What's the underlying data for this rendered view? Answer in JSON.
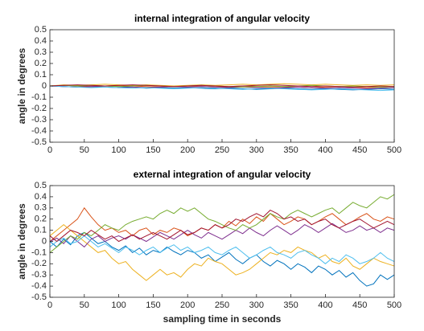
{
  "chart_data": [
    {
      "type": "line",
      "title": "internal integration of angular velocity",
      "ylabel": "angle in degrees",
      "x": [
        0,
        20,
        40,
        60,
        80,
        100,
        120,
        140,
        160,
        180,
        200,
        220,
        240,
        260,
        280,
        300,
        320,
        340,
        360,
        380,
        400,
        420,
        440,
        460,
        480,
        500
      ],
      "xlim": [
        0,
        500
      ],
      "xticks": [
        0,
        50,
        100,
        150,
        200,
        250,
        300,
        350,
        400,
        450,
        500
      ],
      "ylim": [
        -0.5,
        0.5
      ],
      "yticks": [
        -0.5,
        -0.4,
        -0.3,
        -0.2,
        -0.1,
        0,
        0.1,
        0.2,
        0.3,
        0.4,
        0.5
      ],
      "grid": false,
      "series": [
        {
          "color": "#0072BD",
          "values": [
            0,
            -0.005,
            -0.01,
            -0.005,
            -0.01,
            -0.015,
            -0.01,
            -0.02,
            -0.015,
            -0.02,
            -0.015,
            -0.02,
            -0.025,
            -0.02,
            -0.025,
            -0.03,
            -0.025,
            -0.02,
            -0.025,
            -0.03,
            -0.025,
            -0.03,
            -0.035,
            -0.03,
            -0.025,
            -0.03
          ]
        },
        {
          "color": "#D95319",
          "values": [
            0,
            0.005,
            0,
            -0.005,
            0,
            0.005,
            0,
            -0.005,
            -0.01,
            -0.005,
            0,
            -0.005,
            -0.01,
            -0.005,
            0,
            -0.005,
            -0.01,
            -0.005,
            -0.01,
            -0.015,
            -0.01,
            -0.005,
            -0.01,
            -0.015,
            -0.01,
            -0.005
          ]
        },
        {
          "color": "#EDB120",
          "values": [
            0,
            0.01,
            0.005,
            0.01,
            0.015,
            0.01,
            0.005,
            0.01,
            0.005,
            0,
            0.005,
            0.01,
            0.005,
            0.01,
            0.015,
            0.01,
            0.015,
            0.02,
            0.015,
            0.01,
            0.015,
            0.01,
            0.005,
            0.01,
            0.005,
            0.01
          ]
        },
        {
          "color": "#7E2F8E",
          "values": [
            0,
            -0.005,
            -0.01,
            -0.005,
            0,
            -0.005,
            -0.01,
            -0.015,
            -0.01,
            -0.005,
            -0.01,
            -0.005,
            -0.01,
            -0.015,
            -0.01,
            -0.015,
            -0.02,
            -0.015,
            -0.01,
            -0.015,
            -0.02,
            -0.015,
            -0.02,
            -0.025,
            -0.02,
            -0.015
          ]
        },
        {
          "color": "#77AC30",
          "values": [
            0,
            0.005,
            0,
            0.005,
            0,
            -0.005,
            0,
            0.005,
            0,
            -0.005,
            0,
            0.005,
            0,
            -0.005,
            -0.01,
            -0.005,
            0,
            -0.005,
            0,
            0.005,
            0,
            -0.005,
            0,
            -0.005,
            -0.01,
            -0.005
          ]
        },
        {
          "color": "#4DBEEE",
          "values": [
            0,
            -0.005,
            -0.01,
            -0.015,
            -0.01,
            -0.015,
            -0.02,
            -0.015,
            -0.02,
            -0.025,
            -0.02,
            -0.015,
            -0.02,
            -0.025,
            -0.03,
            -0.025,
            -0.02,
            -0.025,
            -0.03,
            -0.035,
            -0.03,
            -0.025,
            -0.03,
            -0.035,
            -0.04,
            -0.035
          ]
        },
        {
          "color": "#A2142F",
          "values": [
            0,
            0.005,
            0.01,
            0.005,
            0,
            0.005,
            0.01,
            0.005,
            0,
            -0.005,
            0,
            0.005,
            0,
            -0.005,
            0,
            0.005,
            0.01,
            0.005,
            0,
            -0.005,
            0,
            -0.005,
            -0.01,
            -0.005,
            0,
            -0.005
          ]
        }
      ]
    },
    {
      "type": "line",
      "title": "external integration of angular velocity",
      "ylabel": "angle in degrees",
      "xlabel": "sampling time in seconds",
      "x": [
        0,
        10,
        20,
        30,
        40,
        50,
        60,
        70,
        80,
        90,
        100,
        110,
        120,
        130,
        140,
        150,
        160,
        170,
        180,
        190,
        200,
        210,
        220,
        230,
        240,
        250,
        260,
        270,
        280,
        290,
        300,
        310,
        320,
        330,
        340,
        350,
        360,
        370,
        380,
        390,
        400,
        410,
        420,
        430,
        440,
        450,
        460,
        470,
        480,
        490,
        500
      ],
      "xlim": [
        0,
        500
      ],
      "xticks": [
        0,
        50,
        100,
        150,
        200,
        250,
        300,
        350,
        400,
        450,
        500
      ],
      "ylim": [
        -0.5,
        0.5
      ],
      "yticks": [
        -0.5,
        -0.4,
        -0.3,
        -0.2,
        -0.1,
        0,
        0.1,
        0.2,
        0.3,
        0.4,
        0.5
      ],
      "grid": false,
      "series": [
        {
          "color": "#0072BD",
          "values": [
            0,
            -0.05,
            0.02,
            -0.03,
            0.05,
            0.08,
            0.03,
            -0.02,
            0,
            -0.05,
            -0.08,
            -0.04,
            -0.1,
            -0.06,
            -0.12,
            -0.08,
            -0.1,
            -0.05,
            -0.09,
            -0.12,
            -0.08,
            -0.1,
            -0.15,
            -0.12,
            -0.18,
            -0.14,
            -0.1,
            -0.16,
            -0.2,
            -0.15,
            -0.12,
            -0.18,
            -0.22,
            -0.17,
            -0.2,
            -0.25,
            -0.2,
            -0.23,
            -0.28,
            -0.22,
            -0.25,
            -0.3,
            -0.26,
            -0.32,
            -0.28,
            -0.35,
            -0.4,
            -0.38,
            -0.3,
            -0.34,
            -0.3
          ]
        },
        {
          "color": "#D95319",
          "values": [
            0,
            0.05,
            0.1,
            0.15,
            0.2,
            0.3,
            0.22,
            0.15,
            0.1,
            0.12,
            0.08,
            0.1,
            0.05,
            0.1,
            0.12,
            0.06,
            0.1,
            0.08,
            0.12,
            0.1,
            0.05,
            0.08,
            0.12,
            0.1,
            0.15,
            0.12,
            0.18,
            0.14,
            0.2,
            0.16,
            0.22,
            0.18,
            0.25,
            0.2,
            0.15,
            0.18,
            0.22,
            0.2,
            0.15,
            0.18,
            0.22,
            0.25,
            0.2,
            0.15,
            0.18,
            0.22,
            0.25,
            0.2,
            0.18,
            0.22,
            0.2
          ]
        },
        {
          "color": "#EDB120",
          "values": [
            0.05,
            0.1,
            0.15,
            0.1,
            0.05,
            0,
            -0.05,
            -0.1,
            -0.08,
            -0.15,
            -0.2,
            -0.18,
            -0.25,
            -0.3,
            -0.35,
            -0.3,
            -0.25,
            -0.3,
            -0.28,
            -0.32,
            -0.25,
            -0.2,
            -0.22,
            -0.15,
            -0.18,
            -0.2,
            -0.25,
            -0.3,
            -0.28,
            -0.25,
            -0.2,
            -0.15,
            -0.1,
            -0.12,
            -0.08,
            -0.1,
            -0.05,
            -0.08,
            -0.1,
            -0.15,
            -0.12,
            -0.18,
            -0.2,
            -0.15,
            -0.22,
            -0.25,
            -0.2,
            -0.15,
            -0.18,
            -0.2,
            -0.22
          ]
        },
        {
          "color": "#7E2F8E",
          "values": [
            0,
            0.03,
            -0.02,
            0.05,
            0,
            -0.05,
            0.02,
            0.05,
            0,
            0.03,
            0.05,
            0.02,
            0.06,
            0.03,
            0,
            0.04,
            0.08,
            0.05,
            0.02,
            0.06,
            0.1,
            0.06,
            0.03,
            0.08,
            0.05,
            0.02,
            0.06,
            0.1,
            0.07,
            0.12,
            0.08,
            0.05,
            0.1,
            0.14,
            0.1,
            0.06,
            0.1,
            0.15,
            0.12,
            0.08,
            0.12,
            0.16,
            0.12,
            0.08,
            0.1,
            0.14,
            0.1,
            0.12,
            0.08,
            0.12,
            0.1
          ]
        },
        {
          "color": "#77AC30",
          "values": [
            -0.1,
            -0.05,
            0,
            0.05,
            0.02,
            0.08,
            0.05,
            0.1,
            0.15,
            0.12,
            0.1,
            0.15,
            0.18,
            0.2,
            0.22,
            0.2,
            0.25,
            0.28,
            0.25,
            0.3,
            0.27,
            0.3,
            0.25,
            0.2,
            0.18,
            0.15,
            0.12,
            0.1,
            0.15,
            0.12,
            0.15,
            0.2,
            0.25,
            0.22,
            0.2,
            0.25,
            0.28,
            0.25,
            0.22,
            0.25,
            0.28,
            0.3,
            0.25,
            0.3,
            0.35,
            0.32,
            0.3,
            0.35,
            0.4,
            0.38,
            0.42
          ]
        },
        {
          "color": "#4DBEEE",
          "values": [
            -0.05,
            0,
            0.03,
            -0.02,
            0,
            0.05,
            0,
            -0.05,
            -0.02,
            -0.06,
            -0.1,
            -0.05,
            -0.08,
            -0.12,
            -0.08,
            -0.05,
            -0.1,
            -0.06,
            -0.03,
            -0.08,
            -0.05,
            -0.1,
            -0.08,
            -0.05,
            -0.1,
            -0.12,
            -0.08,
            -0.05,
            -0.1,
            -0.15,
            -0.12,
            -0.08,
            -0.05,
            -0.1,
            -0.12,
            -0.15,
            -0.1,
            -0.08,
            -0.12,
            -0.15,
            -0.2,
            -0.15,
            -0.18,
            -0.12,
            -0.15,
            -0.2,
            -0.18,
            -0.15,
            -0.1,
            -0.15,
            -0.18
          ]
        },
        {
          "color": "#A2142F",
          "values": [
            0.05,
            0,
            0.05,
            0.1,
            0.08,
            0.05,
            0.1,
            0.06,
            0.02,
            0.05,
            0,
            0.03,
            0.06,
            0.02,
            0.05,
            0.08,
            0.05,
            0.02,
            0.06,
            0.1,
            0.06,
            0.08,
            0.12,
            0.1,
            0.15,
            0.12,
            0.15,
            0.2,
            0.18,
            0.22,
            0.25,
            0.22,
            0.28,
            0.25,
            0.2,
            0.22,
            0.18,
            0.2,
            0.15,
            0.18,
            0.2,
            0.15,
            0.12,
            0.15,
            0.18,
            0.2,
            0.16,
            0.12,
            0.15,
            0.18,
            0.15
          ]
        }
      ]
    }
  ]
}
